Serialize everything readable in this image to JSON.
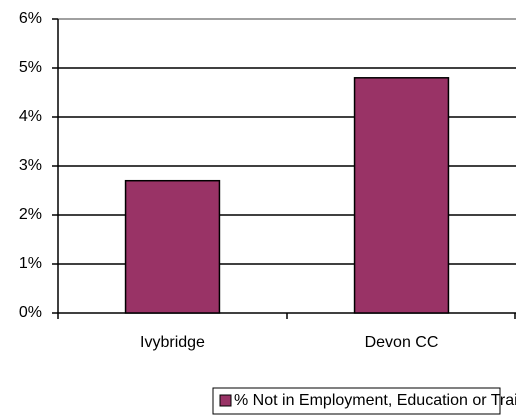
{
  "chart_data": {
    "type": "bar",
    "categories": [
      "Ivybridge",
      "Devon CC"
    ],
    "series": [
      {
        "name": "% Not in Employment, Education or Training",
        "color": "#993366",
        "values": [
          2.7,
          4.8
        ]
      }
    ],
    "ylim": [
      0,
      6
    ],
    "yticks": [
      {
        "value": 0,
        "label": "0%"
      },
      {
        "value": 1,
        "label": "1%"
      },
      {
        "value": 2,
        "label": "2%"
      },
      {
        "value": 3,
        "label": "3%"
      },
      {
        "value": 4,
        "label": "4%"
      },
      {
        "value": 5,
        "label": "5%"
      },
      {
        "value": 6,
        "label": "6%"
      }
    ],
    "grid": true,
    "legend": "bottom"
  }
}
